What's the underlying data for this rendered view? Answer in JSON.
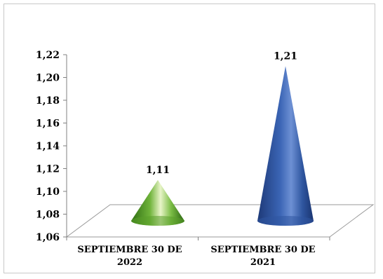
{
  "chart_data": {
    "type": "bar",
    "bar_shape": "cone-3d",
    "categories": [
      "SEPTIEMBRE 30 DE 2022",
      "SEPTIEMBRE 30 DE 2021"
    ],
    "category_lines": [
      [
        "SEPTIEMBRE 30 DE",
        "2022"
      ],
      [
        "SEPTIEMBRE 30 DE",
        "2021"
      ]
    ],
    "values": [
      1.11,
      1.21
    ],
    "data_labels": [
      "1,11",
      "1,21"
    ],
    "colors": [
      "#5a9e2a",
      "#2f56a0"
    ],
    "ylim": [
      1.06,
      1.22
    ],
    "yticks": [
      1.06,
      1.08,
      1.1,
      1.12,
      1.14,
      1.16,
      1.18,
      1.2,
      1.22
    ],
    "ytick_labels": [
      "1,06",
      "1,08",
      "1,10",
      "1,12",
      "1,14",
      "1,16",
      "1,18",
      "1,20",
      "1,22"
    ],
    "title": "",
    "xlabel": "",
    "ylabel": "",
    "grid": false,
    "legend": "none"
  }
}
